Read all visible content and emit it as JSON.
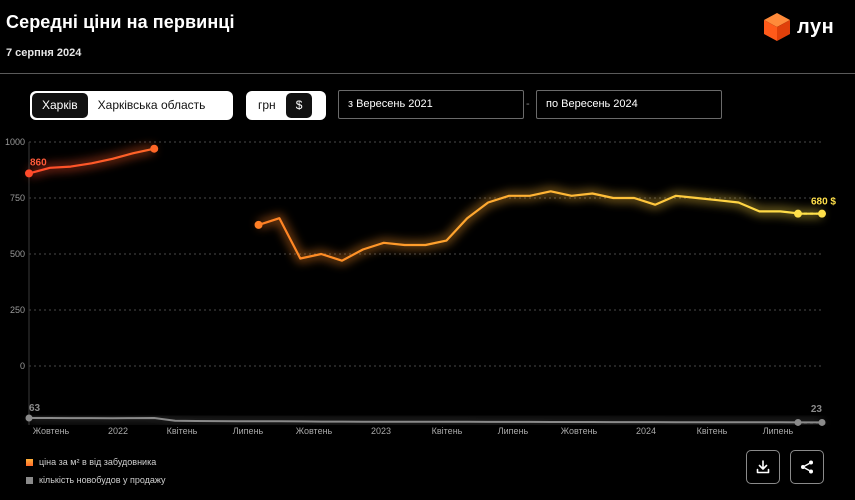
{
  "header": {
    "title": "Середні ціни на первинці",
    "date": "7 серпня 2024",
    "logo_text": "лун"
  },
  "controls": {
    "region_options": [
      {
        "label": "Харків",
        "active": true
      },
      {
        "label": "Харківська область",
        "active": false
      }
    ],
    "currency_options": [
      {
        "label": "грн",
        "active": false
      },
      {
        "label": "$",
        "active": true
      }
    ],
    "date_from": "з  Вересень 2021",
    "date_to": "по  Вересень 2024",
    "range_separator": "-"
  },
  "colors": {
    "accent_start": "#ff5a2a",
    "accent_mid": "#ff9a28",
    "accent_end": "#ffe04a",
    "count_series": "#8a8a8a"
  },
  "chart_data": {
    "type": "line",
    "ylim": [
      0,
      1000
    ],
    "y_ticks": [
      "0",
      "250",
      "500",
      "750",
      "1000"
    ],
    "x_tick_labels": [
      "Жовтень",
      "2022",
      "Квітень",
      "Липень",
      "Жовтень",
      "2023",
      "Квітень",
      "Липень",
      "Жовтень",
      "2024",
      "Квітень",
      "Липень"
    ],
    "grid": true,
    "series": [
      {
        "name": "ціна за м² в від забудовника",
        "segments": [
          [
            [
              0,
              860
            ],
            [
              1,
              885
            ],
            [
              2,
              890
            ],
            [
              3,
              905
            ],
            [
              4,
              925
            ],
            [
              5,
              950
            ],
            [
              6,
              970
            ]
          ],
          [
            [
              11,
              630
            ],
            [
              12,
              660
            ],
            [
              13,
              480
            ],
            [
              14,
              500
            ],
            [
              15,
              470
            ],
            [
              16,
              520
            ],
            [
              17,
              550
            ],
            [
              18,
              540
            ],
            [
              19,
              540
            ],
            [
              20,
              560
            ],
            [
              21,
              660
            ],
            [
              22,
              730
            ],
            [
              23,
              760
            ],
            [
              24,
              760
            ],
            [
              25,
              780
            ],
            [
              26,
              760
            ],
            [
              27,
              770
            ],
            [
              28,
              750
            ],
            [
              29,
              750
            ],
            [
              30,
              720
            ],
            [
              31,
              760
            ],
            [
              32,
              750
            ],
            [
              33,
              740
            ],
            [
              34,
              730
            ],
            [
              35,
              690
            ],
            [
              36,
              690
            ],
            [
              37,
              680
            ],
            [
              38,
              680
            ]
          ]
        ],
        "start_label": "860",
        "end_label": "680 $"
      },
      {
        "name": "кількість новобудов у продажу",
        "values": [
          63,
          63,
          62,
          62,
          61,
          62,
          63,
          38,
          36,
          35,
          34,
          33,
          33,
          32,
          31,
          31,
          30,
          30,
          30,
          29,
          29,
          29,
          28,
          28,
          28,
          27,
          27,
          27,
          26,
          26,
          26,
          25,
          25,
          25,
          24,
          24,
          24,
          23,
          23
        ],
        "start_label": "63",
        "end_label": "23"
      }
    ]
  },
  "footer": {
    "download_icon": "download-icon",
    "share_icon": "share-icon"
  }
}
